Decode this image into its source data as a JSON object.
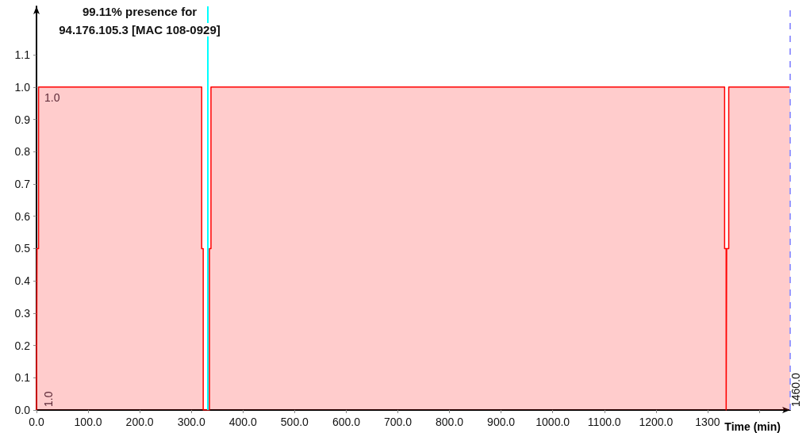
{
  "chart_data": {
    "type": "step",
    "title": "99.11% presence for\n94.176.105.3 [MAC 108-0929]",
    "xlabel": "Time (min)",
    "x": [
      0,
      1,
      4,
      320,
      323,
      335,
      338,
      1333,
      1336,
      1337,
      1341,
      1460
    ],
    "series": [
      {
        "color": "#ff0000",
        "values": [
          0,
          0.5,
          1,
          0.5,
          0,
          0.5,
          1,
          0.5,
          0,
          0.5,
          1,
          1
        ]
      }
    ],
    "xlim": [
      0,
      1460
    ],
    "xticks": [
      {
        "value": 0,
        "label": "0.0"
      },
      {
        "value": 100,
        "label": "100.0"
      },
      {
        "value": 200,
        "label": "200.0"
      },
      {
        "value": 300,
        "label": "300.0"
      },
      {
        "value": 400,
        "label": "400.0"
      },
      {
        "value": 500,
        "label": "500.0"
      },
      {
        "value": 600,
        "label": "600.0"
      },
      {
        "value": 700,
        "label": "700.0"
      },
      {
        "value": 800,
        "label": "800.0"
      },
      {
        "value": 900,
        "label": "900.0"
      },
      {
        "value": 1000,
        "label": "1000.0"
      },
      {
        "value": 1100,
        "label": "1100.0"
      },
      {
        "value": 1200,
        "label": "1200.0"
      },
      1300,
      {
        "value": 1400,
        "label": null
      }
    ],
    "ylim": [
      0,
      1.25
    ],
    "yticks": [
      {
        "value": 0,
        "label": "0.0"
      },
      {
        "value": 0.1,
        "label": "0.1"
      },
      {
        "value": 0.2,
        "label": "0.2"
      },
      {
        "value": 0.3,
        "label": "0.3"
      },
      {
        "value": 0.4,
        "label": "0.4"
      },
      {
        "value": 0.5,
        "label": "0.5"
      },
      {
        "value": 0.6,
        "label": "0.6"
      },
      {
        "value": 0.7,
        "label": "0.7"
      },
      {
        "value": 0.8,
        "label": "0.8"
      },
      {
        "value": 0.9,
        "label": "0.9"
      },
      {
        "value": 1,
        "label": "1.0"
      },
      {
        "value": 1.1,
        "label": "1.1"
      }
    ],
    "ref_lines": [
      {
        "axis": "x",
        "value": 332,
        "label": null,
        "color": "#00ffff",
        "line_style": "solid"
      },
      {
        "axis": "x",
        "value": 1460,
        "label": "1460.0",
        "color": "#9999ff",
        "line_style": "dashed"
      }
    ],
    "annotations": [
      {
        "text": "1.0",
        "x": 0,
        "y": 1.0
      },
      {
        "text": "1.0",
        "x": 0,
        "y": 0
      }
    ],
    "grid": false,
    "marker": "none"
  }
}
